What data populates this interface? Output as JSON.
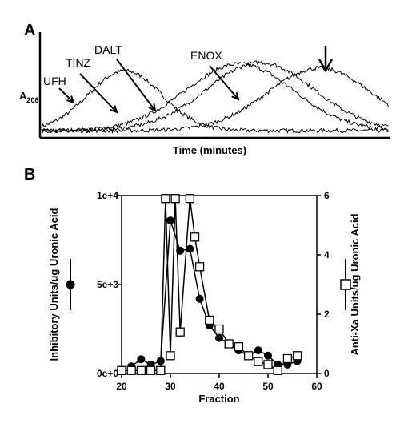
{
  "chart_data": [
    {
      "panel": "A",
      "type": "line",
      "ylabel_main": "A",
      "ylabel_sub": "206",
      "xlabel": "Time (minutes)",
      "grid": false,
      "series": [
        {
          "name": "UFH",
          "peak": 0.24
        },
        {
          "name": "TINZ",
          "peak": 0.57
        },
        {
          "name": "DALT",
          "peak": 0.63
        },
        {
          "name": "ENOX",
          "peak": 0.8
        }
      ]
    },
    {
      "panel": "B",
      "type": "line",
      "xlabel": "Fraction",
      "ylabel_left": "Inhibitory Units/ug Uronic Acid",
      "ylabel_right": "Anti-Xa Units/ug Uronic Acid",
      "xlim": [
        20,
        60
      ],
      "x_ticks": [
        "20",
        "30",
        "40",
        "50",
        "60"
      ],
      "ylim_left": [
        0,
        10000
      ],
      "y_ticks_left": [
        "0e+0",
        "5e+3",
        "1e+4"
      ],
      "ylim_right": [
        0,
        6
      ],
      "y_ticks_right": [
        "0",
        "2",
        "4",
        "6"
      ],
      "grid": false,
      "series": [
        {
          "marker": "filled-circle",
          "axis": "left",
          "x": [
            22,
            24,
            26,
            28,
            30,
            32,
            34,
            36,
            38,
            40,
            42,
            44,
            46,
            48,
            50,
            52,
            54,
            56
          ],
          "y": [
            400,
            800,
            500,
            700,
            8600,
            6900,
            7000,
            4200,
            2700,
            2000,
            1700,
            1300,
            1000,
            1300,
            1000,
            500,
            500,
            700
          ]
        },
        {
          "marker": "open-square",
          "axis": "right",
          "x": [
            20,
            22,
            24,
            26,
            28,
            29,
            30,
            31,
            32,
            34,
            35,
            36,
            38,
            40,
            42,
            44,
            46,
            48,
            50,
            52,
            54,
            56
          ],
          "y": [
            0.1,
            0.1,
            0.1,
            0.1,
            0.1,
            5.9,
            0.6,
            5.9,
            1.4,
            5.9,
            4.6,
            3.6,
            1.8,
            1.5,
            1.0,
            0.9,
            0.6,
            0.4,
            0.3,
            0.1,
            0.5,
            0.6
          ]
        }
      ]
    }
  ]
}
